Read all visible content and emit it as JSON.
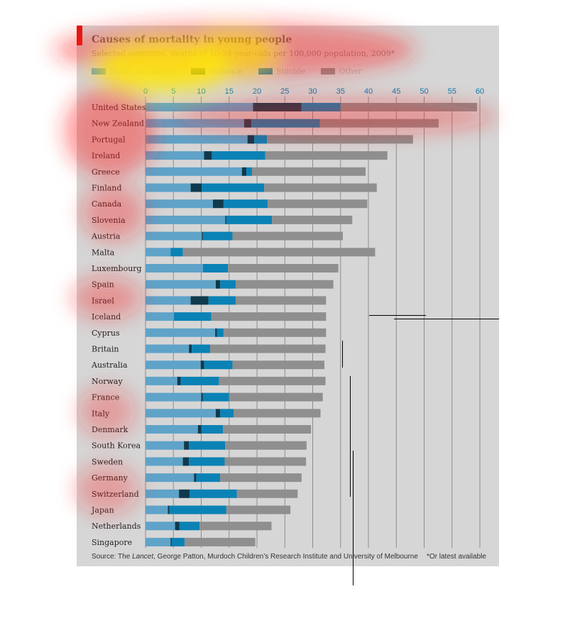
{
  "colors": {
    "traffic": "#5fa3c9",
    "violence": "#0f3a4d",
    "suicide": "#0b82b5",
    "other": "#8f8f8f",
    "panel": "#d6d6d6",
    "grid": "#8c8c8c",
    "accent": "#e3120b"
  },
  "header": {
    "title": "Causes of mortality in young people",
    "subtitle": "Selected countries, deaths of 10-24-year-olds per 100,000 population, 2009*"
  },
  "legend": [
    {
      "label": "Traffic accidents",
      "color": "#5fa3c9"
    },
    {
      "label": "Violence",
      "color": "#0f3a4d"
    },
    {
      "label": "Suicide",
      "color": "#0b82b5"
    },
    {
      "label": "Other",
      "color": "#8f8f8f"
    }
  ],
  "footer": {
    "source_prefix": "Source: The ",
    "source_italic": "Lancet",
    "source_rest": ", George Patton, Murdoch Children’s Research Institute and University of Melbourne",
    "note": "*Or latest available"
  },
  "chart_data": {
    "type": "bar",
    "orientation": "horizontal",
    "stacked": true,
    "title": "Causes of mortality in young people",
    "subtitle": "Selected countries, deaths of 10-24-year-olds per 100,000 population, 2009*",
    "xlim": [
      0,
      60
    ],
    "xticks": [
      0,
      5,
      10,
      15,
      20,
      25,
      30,
      35,
      40,
      45,
      50,
      55,
      60
    ],
    "grid": true,
    "legend_position": "top",
    "categories": [
      "United States",
      "New Zealand",
      "Portugal",
      "Ireland",
      "Greece",
      "Finland",
      "Canada",
      "Slovenia",
      "Austria",
      "Malta",
      "Luxembourg",
      "Spain",
      "Israel",
      "Iceland",
      "Cyprus",
      "Britain",
      "Australia",
      "Norway",
      "France",
      "Italy",
      "Denmark",
      "South Korea",
      "Sweden",
      "Germany",
      "Switzerland",
      "Japan",
      "Netherlands",
      "Singapore"
    ],
    "series": [
      {
        "name": "Traffic accidents",
        "values": [
          19.3,
          17.7,
          18.3,
          10.5,
          17.3,
          8.1,
          12.1,
          14.3,
          10.1,
          4.5,
          10.3,
          12.6,
          8.1,
          5.1,
          12.5,
          7.8,
          9.9,
          5.7,
          10.0,
          12.6,
          9.4,
          6.9,
          6.7,
          8.7,
          6.0,
          4.0,
          5.3,
          4.5
        ]
      },
      {
        "name": "Violence",
        "values": [
          8.7,
          1.3,
          1.2,
          1.4,
          0.8,
          2.0,
          1.9,
          0.2,
          0.2,
          0.0,
          0.0,
          0.8,
          3.2,
          0.0,
          0.3,
          0.5,
          0.6,
          0.6,
          0.3,
          0.8,
          0.6,
          0.9,
          1.1,
          0.4,
          1.9,
          0.3,
          0.8,
          0.2
        ]
      },
      {
        "name": "Suicide",
        "values": [
          7.0,
          12.3,
          2.3,
          9.6,
          1.0,
          11.2,
          7.9,
          8.2,
          5.3,
          2.2,
          4.5,
          2.8,
          4.9,
          6.7,
          1.2,
          3.3,
          5.1,
          6.9,
          4.7,
          2.4,
          3.9,
          6.5,
          6.4,
          4.3,
          8.5,
          10.2,
          3.6,
          2.3
        ]
      },
      {
        "name": "Other",
        "values": [
          24.5,
          21.3,
          26.2,
          21.9,
          20.4,
          20.2,
          17.9,
          14.4,
          19.8,
          34.5,
          19.8,
          17.5,
          16.2,
          20.6,
          18.4,
          20.7,
          16.5,
          19.1,
          16.8,
          15.6,
          15.8,
          14.6,
          14.6,
          14.6,
          10.9,
          11.5,
          12.9,
          12.7
        ]
      }
    ]
  }
}
